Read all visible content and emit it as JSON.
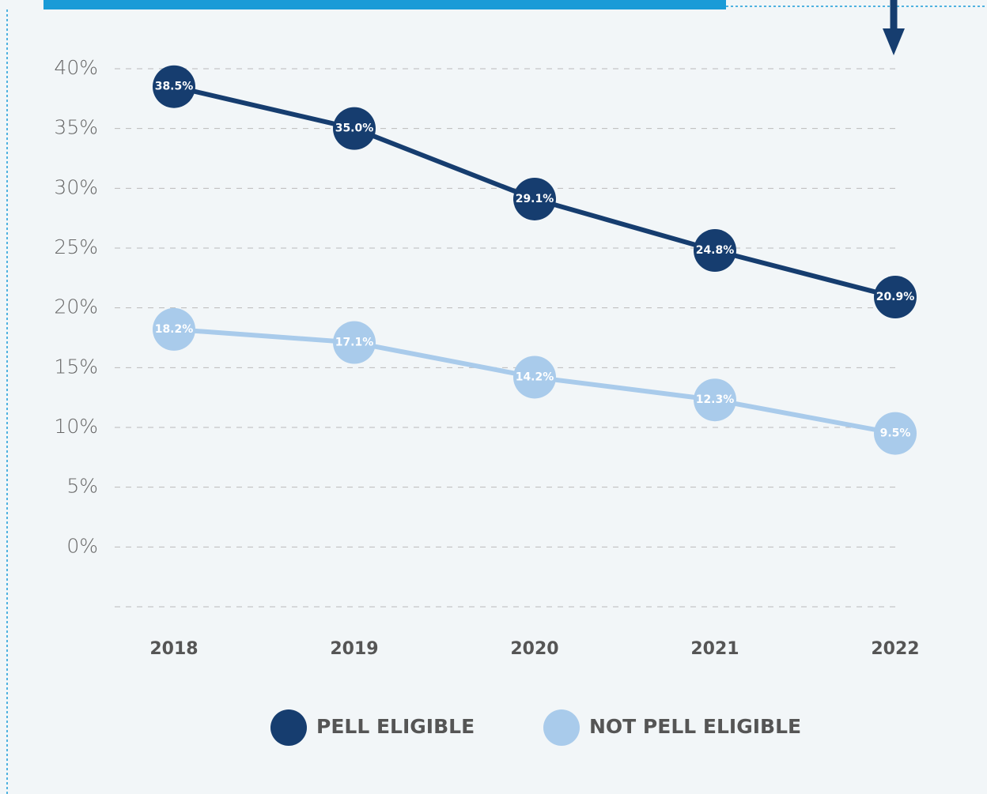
{
  "chart_data": {
    "type": "line",
    "categories": [
      "2018",
      "2019",
      "2020",
      "2021",
      "2022"
    ],
    "series": [
      {
        "name": "PELL ELIGIBLE",
        "color": "#163d6f",
        "values": [
          38.5,
          35.0,
          29.1,
          24.8,
          20.9
        ],
        "value_labels": [
          "38.5%",
          "35.0%",
          "29.1%",
          "24.8%",
          "20.9%"
        ]
      },
      {
        "name": "NOT PELL ELIGIBLE",
        "color": "#a9cbeb",
        "values": [
          18.2,
          17.1,
          14.2,
          12.3,
          9.5
        ],
        "value_labels": [
          "18.2%",
          "17.1%",
          "14.2%",
          "12.3%",
          "9.5%"
        ]
      }
    ],
    "ylim": [
      -5,
      40
    ],
    "yticks": [
      {
        "value": 0,
        "label": "0%"
      },
      {
        "value": 5,
        "label": "5%"
      },
      {
        "value": 10,
        "label": "10%"
      },
      {
        "value": 15,
        "label": "15%"
      },
      {
        "value": 20,
        "label": "20%"
      },
      {
        "value": 25,
        "label": "25%"
      },
      {
        "value": 30,
        "label": "30%"
      },
      {
        "value": 35,
        "label": "35%"
      },
      {
        "value": 40,
        "label": "40%"
      }
    ],
    "grid": true,
    "legend": "bottom"
  }
}
